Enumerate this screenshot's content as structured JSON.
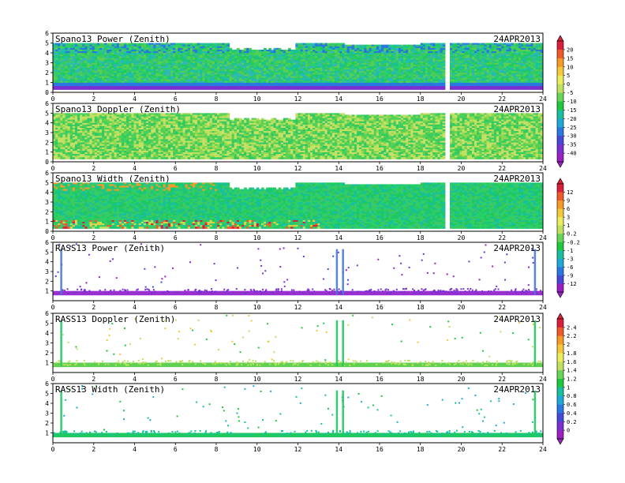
{
  "date_label": "24APR2013",
  "chart_data": [
    {
      "type": "heatmap",
      "title": "Spano13 Power (Zenith)",
      "date": "24APR2013",
      "xlim": [
        0,
        24
      ],
      "ylim": [
        0,
        6
      ],
      "x_ticks": [
        0,
        2,
        4,
        6,
        8,
        10,
        12,
        14,
        16,
        18,
        20,
        22,
        24
      ],
      "y_ticks": [
        0,
        1,
        2,
        3,
        4,
        5,
        6
      ],
      "data_top_km": 5.0,
      "gaps_x": [
        [
          19.1,
          19.35
        ]
      ],
      "colorscale": "power"
    },
    {
      "type": "heatmap",
      "title": "Spano13 Doppler (Zenith)",
      "date": "24APR2013",
      "xlim": [
        0,
        24
      ],
      "ylim": [
        0,
        6
      ],
      "x_ticks": [
        0,
        2,
        4,
        6,
        8,
        10,
        12,
        14,
        16,
        18,
        20,
        22,
        24
      ],
      "y_ticks": [
        0,
        1,
        2,
        3,
        4,
        5,
        6
      ],
      "data_top_km": 5.0,
      "gaps_x": [
        [
          19.1,
          19.35
        ]
      ],
      "colorscale": "doppler"
    },
    {
      "type": "heatmap",
      "title": "Spano13 Width (Zenith)",
      "date": "24APR2013",
      "xlim": [
        0,
        24
      ],
      "ylim": [
        0,
        6
      ],
      "x_ticks": [
        0,
        2,
        4,
        6,
        8,
        10,
        12,
        14,
        16,
        18,
        20,
        22,
        24
      ],
      "y_ticks": [
        0,
        1,
        2,
        3,
        4,
        5,
        6
      ],
      "data_top_km": 5.0,
      "gaps_x": [
        [
          19.1,
          19.35
        ]
      ],
      "colorscale": "width"
    },
    {
      "type": "heatmap",
      "title": "RASS13 Power (Zenith)",
      "date": "24APR2013",
      "xlim": [
        0,
        24
      ],
      "ylim": [
        0,
        6
      ],
      "x_ticks": [
        0,
        2,
        4,
        6,
        8,
        10,
        12,
        14,
        16,
        18,
        20,
        22,
        24
      ],
      "y_ticks": [
        1,
        2,
        3,
        4,
        5,
        6
      ],
      "vertical_streaks_x": [
        0.4,
        13.9,
        14.2,
        23.6
      ],
      "colorscale": "power_rass"
    },
    {
      "type": "heatmap",
      "title": "RASS13 Doppler (Zenith)",
      "date": "24APR2013",
      "xlim": [
        0,
        24
      ],
      "ylim": [
        0,
        6
      ],
      "x_ticks": [
        0,
        2,
        4,
        6,
        8,
        10,
        12,
        14,
        16,
        18,
        20,
        22,
        24
      ],
      "y_ticks": [
        1,
        2,
        3,
        4,
        5,
        6
      ],
      "vertical_streaks_x": [
        0.4,
        13.9,
        14.2,
        23.6
      ],
      "colorscale": "doppler_rass"
    },
    {
      "type": "heatmap",
      "title": "RASS13 Width (Zenith)",
      "date": "24APR2013",
      "xlim": [
        0,
        24
      ],
      "ylim": [
        0,
        6
      ],
      "x_ticks": [
        0,
        2,
        4,
        6,
        8,
        10,
        12,
        14,
        16,
        18,
        20,
        22,
        24
      ],
      "y_ticks": [
        1,
        2,
        3,
        4,
        5,
        6
      ],
      "vertical_streaks_x": [
        0.4,
        13.9,
        14.2,
        23.6
      ],
      "colorscale": "width_rass"
    }
  ],
  "colorbars": [
    {
      "labels": [
        "20",
        "15",
        "10",
        "5",
        "0",
        "-5",
        "-10",
        "-15",
        "-20",
        "-25",
        "-30",
        "-35",
        "-40"
      ],
      "colors": [
        "#d8203a",
        "#ee5a2a",
        "#f59a28",
        "#f5c83a",
        "#ecec60",
        "#bfe060",
        "#6ad35a",
        "#20c840",
        "#18c0a0",
        "#20a8d8",
        "#2878e0",
        "#4848d8",
        "#7a30d0",
        "#9a20c0"
      ]
    },
    {
      "labels": [
        "12",
        "9",
        "6",
        "3",
        "1",
        "0.2",
        "-0.2",
        "-1",
        "-3",
        "-6",
        "-9",
        "-12"
      ],
      "colors": [
        "#d8203a",
        "#ee5a2a",
        "#f59a28",
        "#f5c83a",
        "#ecec60",
        "#bfe060",
        "#6ad35a",
        "#20c840",
        "#18c0a0",
        "#20a8d8",
        "#2878e0",
        "#4848d8",
        "#9a20c0"
      ]
    },
    {
      "labels": [
        "2.4",
        "2.2",
        "2",
        "1.8",
        "1.6",
        "1.4",
        "1.2",
        "1",
        "0.8",
        "0.6",
        "0.4",
        "0.2",
        "0"
      ],
      "colors": [
        "#d8203a",
        "#ee5a2a",
        "#f59a28",
        "#f5c83a",
        "#ecec60",
        "#bfe060",
        "#6ad35a",
        "#20c840",
        "#18c0a0",
        "#20a8d8",
        "#2878e0",
        "#4848d8",
        "#7a30d0",
        "#9a20c0"
      ]
    }
  ]
}
